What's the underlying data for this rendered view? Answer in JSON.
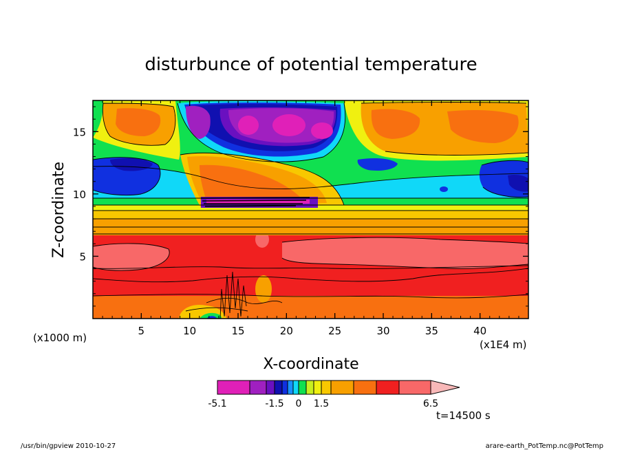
{
  "chart_data": {
    "type": "heatmap",
    "title": "disturbunce of potential temperature",
    "xlabel": "X-coordinate",
    "ylabel": "Z-coordinate",
    "x_unit": "(x1E4 m)",
    "y_unit": "(x1000 m)",
    "xlim": [
      0,
      45
    ],
    "ylim": [
      0,
      17.5
    ],
    "xticks": [
      5,
      10,
      15,
      20,
      25,
      30,
      35,
      40
    ],
    "yticks": [
      5,
      10,
      15
    ],
    "grid": false,
    "time_label": "t=14500 s",
    "colorbar": {
      "tick_labels": [
        "-5.1",
        "-1.5",
        "0",
        "1.5",
        "6.5"
      ],
      "tick_values": [
        -5.1,
        -1.5,
        0,
        1.5,
        6.5
      ],
      "colors": [
        "#e020b8",
        "#a020c0",
        "#6a10c0",
        "#1010b0",
        "#1030e0",
        "#1890ff",
        "#10d8f8",
        "#10e050",
        "#c8f020",
        "#f0f010",
        "#f8c800",
        "#f8a000",
        "#f87010",
        "#f02020",
        "#f86868",
        "#f8b8b8"
      ],
      "extend": "max"
    },
    "field": {
      "mid_altitude_band_z": [
        7,
        9
      ],
      "warm_core_z": [
        4.5,
        7
      ],
      "cool_layer_z": [
        10,
        13
      ],
      "upper_cold_cells_z": [
        14,
        17.5
      ],
      "turbulent_zone_x": [
        10,
        24
      ]
    }
  },
  "footer": {
    "left": "/usr/bin/gpview   2010-10-27",
    "right": "arare-earth_PotTemp.nc@PotTemp"
  }
}
